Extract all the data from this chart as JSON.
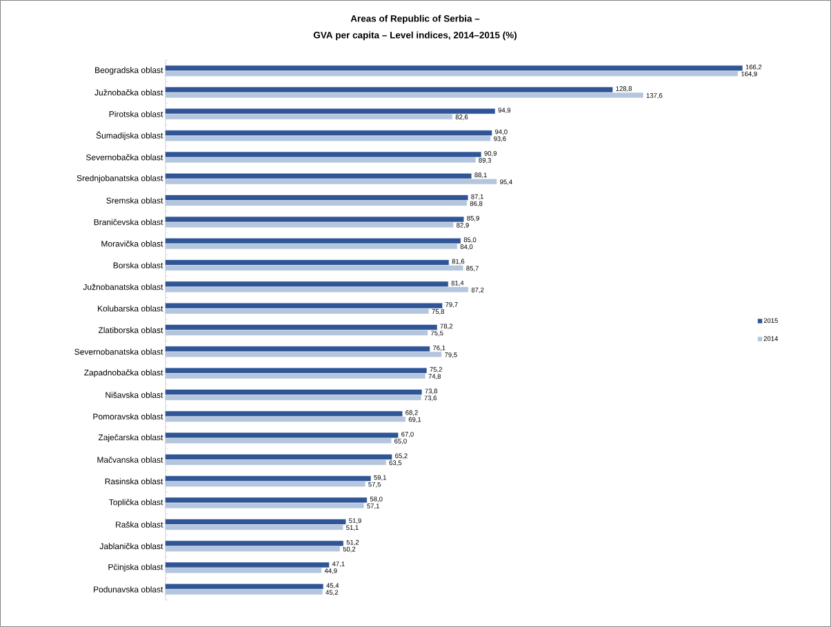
{
  "chart_data": {
    "type": "bar",
    "orientation": "horizontal",
    "title": "Areas of Republic of Serbia –",
    "subtitle": "GVA per capita – Level indices, 2014–2015 (%)",
    "categories": [
      "Beogradska oblast",
      "Južnobačka oblast",
      "Pirotska oblast",
      "Šumadijska oblast",
      "Severnobačka oblast",
      "Srednjobanatska oblast",
      "Sremska oblast",
      "Braničevska oblast",
      "Moravička oblast",
      "Borska oblast",
      "Južnobanatska oblast",
      "Kolubarska oblast",
      "Zlatiborska oblast",
      "Severnobanatska oblast",
      "Zapadnobačka oblast",
      "Nišavska oblast",
      "Pomoravska oblast",
      "Zaječarska oblast",
      "Mačvanska oblast",
      "Rasinska oblast",
      "Toplička oblast",
      "Raška oblast",
      "Jablanička oblast",
      "Pčinjska oblast",
      "Podunavska oblast"
    ],
    "series": [
      {
        "name": "2015",
        "color": "#2f5597",
        "values": [
          166.2,
          128.8,
          94.9,
          94.0,
          90.9,
          88.1,
          87.1,
          85.9,
          85.0,
          81.6,
          81.4,
          79.7,
          78.2,
          76.1,
          75.2,
          73.8,
          68.2,
          67.0,
          65.2,
          59.1,
          58.0,
          51.9,
          51.2,
          47.1,
          45.4
        ],
        "value_labels": [
          "166,2",
          "128,8",
          "94,9",
          "94,0",
          "90,9",
          "88,1",
          "87,1",
          "85,9",
          "85,0",
          "81,6",
          "81,4",
          "79,7",
          "78,2",
          "76,1",
          "75,2",
          "73,8",
          "68,2",
          "67,0",
          "65,2",
          "59,1",
          "58,0",
          "51,9",
          "51,2",
          "47,1",
          "45,4"
        ]
      },
      {
        "name": "2014",
        "color": "#b4c6de",
        "values": [
          164.9,
          137.6,
          82.6,
          93.6,
          89.3,
          95.4,
          86.8,
          82.9,
          84.0,
          85.7,
          87.2,
          75.8,
          75.5,
          79.5,
          74.8,
          73.6,
          69.1,
          65.0,
          63.5,
          57.5,
          57.1,
          51.1,
          50.2,
          44.9,
          45.2
        ],
        "value_labels": [
          "164,9",
          "137,6",
          "82,6",
          "93,6",
          "89,3",
          "95,4",
          "86,8",
          "82,9",
          "84,0",
          "85,7",
          "87,2",
          "75,8",
          "75,5",
          "79,5",
          "74,8",
          "73,6",
          "69,1",
          "65,0",
          "63,5",
          "57,5",
          "57,1",
          "51,1",
          "50,2",
          "44,9",
          "45,2"
        ]
      }
    ],
    "legend": "right"
  }
}
